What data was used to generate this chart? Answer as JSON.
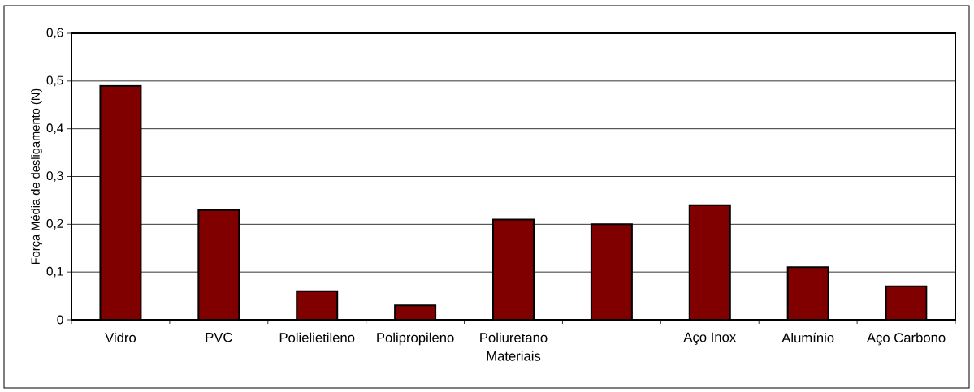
{
  "chart_data": {
    "type": "bar",
    "categories": [
      "Vidro",
      "PVC",
      "Polielietileno",
      "Polipropileno",
      "Poliuretano",
      null,
      "Aço Inox",
      "Alumínio",
      "Aço Carbono"
    ],
    "values": [
      0.49,
      0.23,
      0.06,
      0.03,
      0.21,
      0.2,
      0.24,
      0.11,
      0.07
    ],
    "color": "#800000",
    "xlabel": "Materiais",
    "ylabel": "Força Média de desligamento (N)",
    "ylim": [
      0,
      0.6
    ],
    "yticks": [
      0,
      {
        "value": 0.1,
        "label": "0,1"
      },
      {
        "value": 0.2,
        "label": "0,2"
      },
      {
        "value": 0.3,
        "label": "0,3"
      },
      {
        "value": 0.4,
        "label": "0,4"
      },
      {
        "value": 0.5,
        "label": "0,5"
      },
      {
        "value": 0.6,
        "label": "0,6"
      }
    ],
    "grid": "y"
  }
}
